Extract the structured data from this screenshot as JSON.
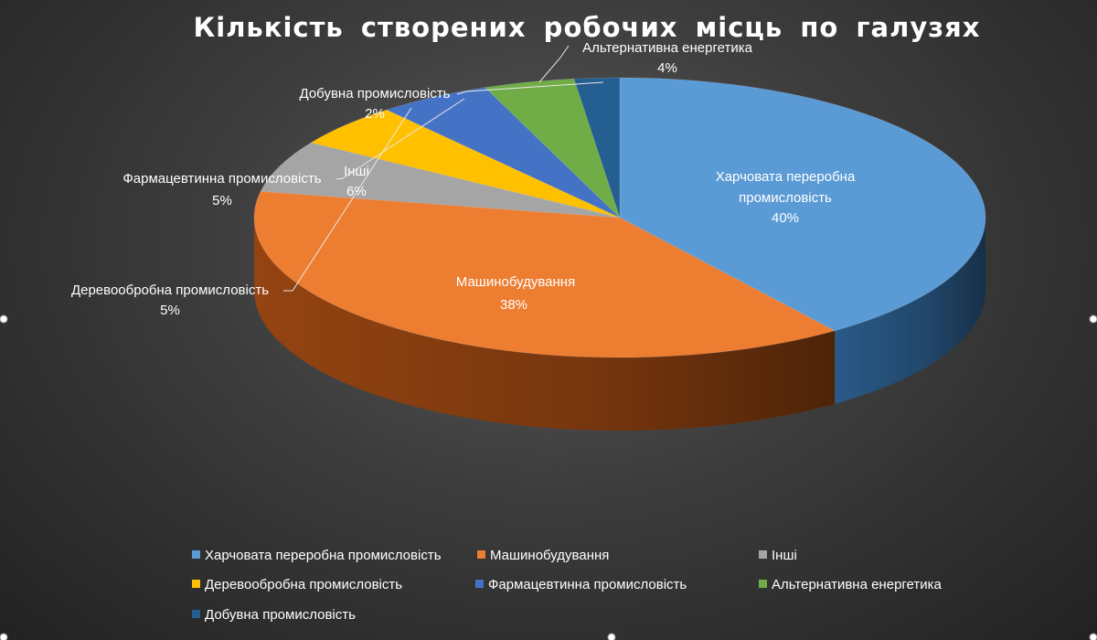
{
  "chart_data": {
    "type": "pie",
    "title": "Кількість  створених  робочих  місць  по галузях",
    "slices": [
      {
        "label": "Харчовата переробна промисловість",
        "label_lines": [
          "Харчовата переробна",
          "промисловість"
        ],
        "value": 40,
        "value_label": "40%",
        "color": "#5b9bd5",
        "side_color": "#2c5f8f"
      },
      {
        "label": "Машинобудування",
        "label_lines": [
          "Машинобудування"
        ],
        "value": 38,
        "value_label": "38%",
        "color": "#ed7d31",
        "side_color": "#9c4712"
      },
      {
        "label": "Інші",
        "label_lines": [
          "Інші"
        ],
        "value": 6,
        "value_label": "6%",
        "color": "#a5a5a5",
        "side_color": "#6a6a6a"
      },
      {
        "label": "Деревообробна промисловість",
        "label_lines": [
          "Деревообробна промисловість"
        ],
        "value": 5,
        "value_label": "5%",
        "color": "#ffc000",
        "side_color": "#a67c00"
      },
      {
        "label": "Фармацевтична промисловість",
        "label_lines": [
          "Фармацевтинна промисловість"
        ],
        "value": 5,
        "value_label": "5%",
        "color": "#4472c4",
        "side_color": "#254a8a"
      },
      {
        "label": "Альтернативна енергетика",
        "label_lines": [
          "Альтернативна енергетика"
        ],
        "value": 4,
        "value_label": "4%",
        "color": "#70ad47",
        "side_color": "#426b27"
      },
      {
        "label": "Добувна промисловість",
        "label_lines": [
          "Добувна промисловість"
        ],
        "value": 2,
        "value_label": "2%",
        "color": "#255e91",
        "side_color": "#153a5c"
      }
    ],
    "legend": {
      "position": "bottom",
      "entries": [
        {
          "label": "Харчовата переробна промисловість",
          "color": "#5b9bd5"
        },
        {
          "label": "Машинобудування",
          "color": "#ed7d31"
        },
        {
          "label": "Інші",
          "color": "#a5a5a5"
        },
        {
          "label": "Деревообробна промисловість",
          "color": "#ffc000"
        },
        {
          "label": "Фармацевтинна промисловість",
          "color": "#4472c4"
        },
        {
          "label": "Альтернативна енергетика",
          "color": "#70ad47"
        },
        {
          "label": "Добувна промисловість",
          "color": "#255e91"
        }
      ]
    },
    "style": "3d-pie"
  }
}
